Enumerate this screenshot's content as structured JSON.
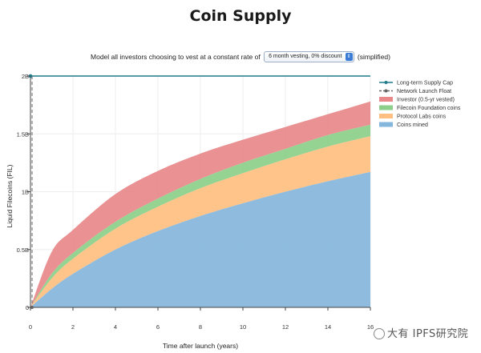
{
  "header": {
    "title": "Coin Supply"
  },
  "controls": {
    "prefix": "Model all investors choosing to vest at a constant rate of",
    "select_value": "6 month vesting, 0% discount",
    "suffix": "(simplified)"
  },
  "watermark": {
    "text": "大有 IPFS研究院"
  },
  "colors": {
    "cap": "#1f7a8c",
    "float": "#666666",
    "investor": "#e8888a",
    "foundation": "#8ccf8a",
    "protocol": "#ffbf80",
    "mined": "#85b6db"
  },
  "chart_data": {
    "type": "area",
    "stacked": true,
    "xlabel": "Time after launch (years)",
    "ylabel": "Liquid Filecoins (FIL)",
    "xlim": [
      0,
      16
    ],
    "ylim": [
      0,
      2
    ],
    "x_ticks": [
      "0",
      "2",
      "4",
      "6",
      "8",
      "10",
      "12",
      "14",
      "16"
    ],
    "y_ticks": [
      "0",
      "0.5B",
      "1B",
      "1.5B",
      "2B"
    ],
    "x": [
      0,
      1,
      2,
      4,
      6,
      8,
      10,
      12,
      14,
      16
    ],
    "series": [
      {
        "name": "Coins mined",
        "color_key": "mined",
        "values": [
          0.0,
          0.16,
          0.29,
          0.5,
          0.66,
          0.79,
          0.9,
          1.0,
          1.09,
          1.17
        ]
      },
      {
        "name": "Protocol Labs coins",
        "color_key": "protocol",
        "values": [
          0.0,
          0.09,
          0.13,
          0.18,
          0.21,
          0.24,
          0.26,
          0.28,
          0.3,
          0.31
        ]
      },
      {
        "name": "Filecoin Foundation coins",
        "color_key": "foundation",
        "values": [
          0.0,
          0.04,
          0.05,
          0.06,
          0.07,
          0.08,
          0.09,
          0.09,
          0.1,
          0.1
        ]
      },
      {
        "name": "Investor (0.5-yr vested)",
        "color_key": "investor",
        "values": [
          0.0,
          0.19,
          0.2,
          0.24,
          0.24,
          0.22,
          0.2,
          0.19,
          0.18,
          0.2
        ]
      }
    ],
    "lines": [
      {
        "name": "Long-term Supply Cap",
        "color_key": "cap",
        "style": "solid-marker",
        "y": 2
      },
      {
        "name": "Network Launch Float",
        "color_key": "float",
        "style": "dashed-marker",
        "x": 0
      }
    ],
    "legend_order": [
      "Long-term Supply Cap",
      "Network Launch Float",
      "Investor (0.5-yr vested)",
      "Filecoin Foundation coins",
      "Protocol Labs coins",
      "Coins mined"
    ],
    "legend_position": "right",
    "grid": true
  }
}
